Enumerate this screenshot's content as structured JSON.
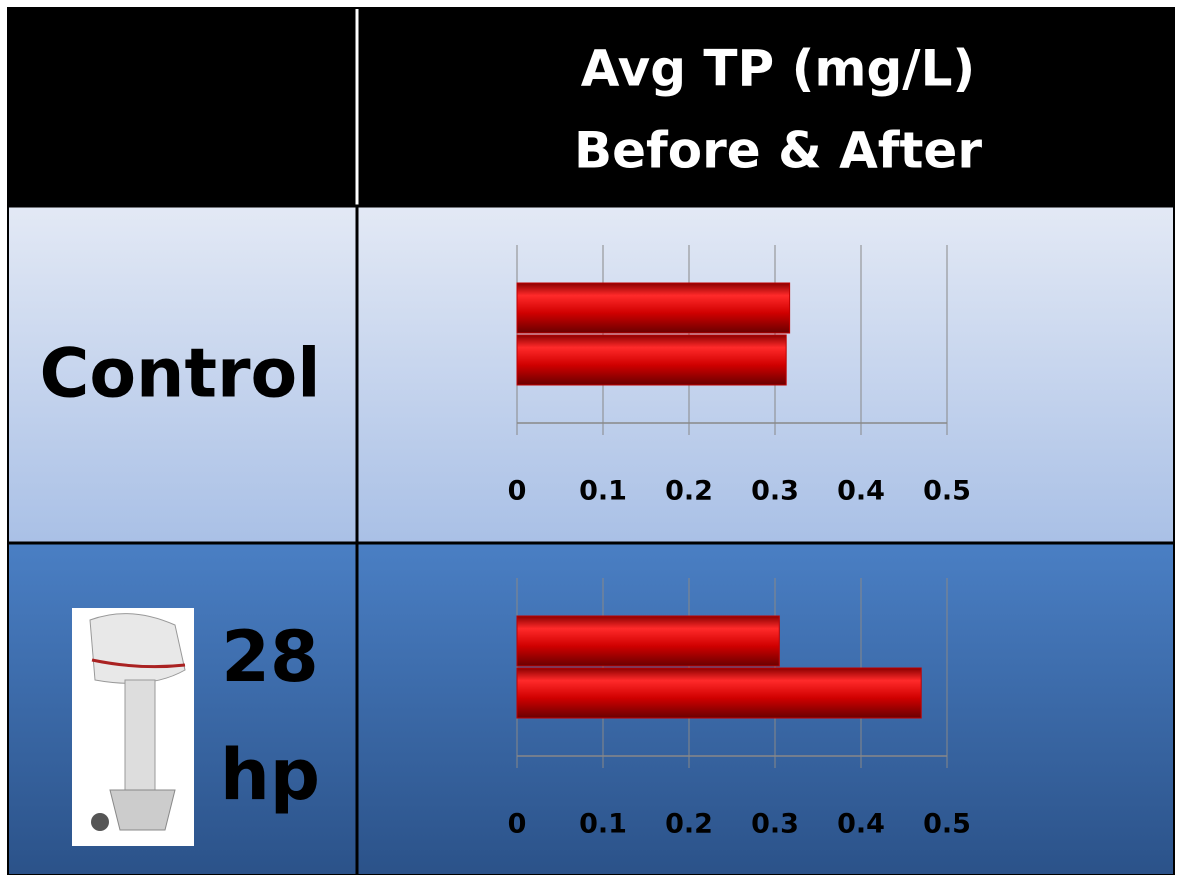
{
  "table": {
    "header": [
      "Avg TP (mg/L)",
      "Before & After"
    ],
    "rows": [
      "Control",
      "28 hp"
    ]
  },
  "chart_data": [
    {
      "type": "bar",
      "orientation": "horizontal",
      "categories": [
        null,
        null
      ],
      "values": [
        0.317,
        0.313
      ],
      "color": "#c00000",
      "xlim": [
        0,
        0.5
      ],
      "xticks": [
        0,
        0.1,
        0.2,
        0.3,
        0.4,
        0.5
      ],
      "grid": true
    },
    {
      "type": "bar",
      "orientation": "horizontal",
      "categories": [
        null,
        null
      ],
      "values": [
        0.305,
        0.47
      ],
      "color": "#c00000",
      "xlim": [
        0,
        0.5
      ],
      "xticks": [
        0,
        0.1,
        0.2,
        0.3,
        0.4,
        0.5
      ],
      "grid": true
    }
  ]
}
